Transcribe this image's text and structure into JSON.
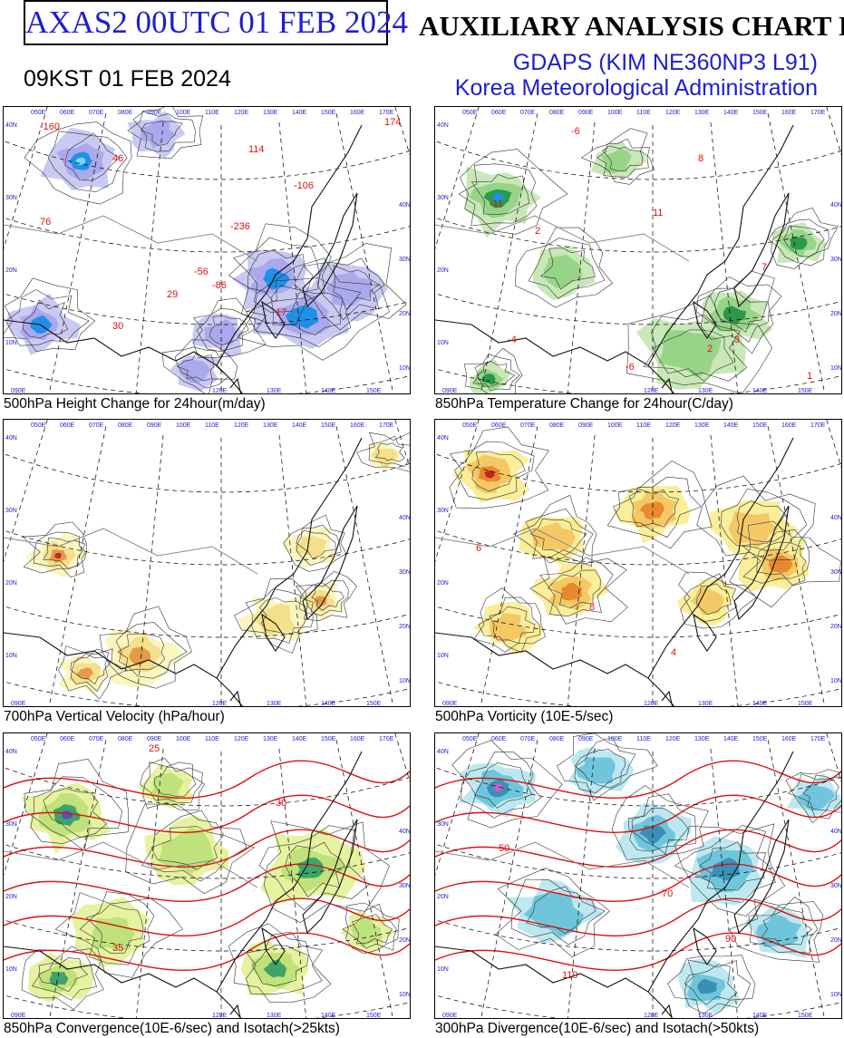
{
  "header": {
    "product_code": "AXAS2  00UTC 01 FEB 2024",
    "title": "AUXILIARY ANALYSIS CHART II",
    "model": "GDAPS (KIM NE360NP3 L91)",
    "agency": "Korea Meteorological Administration",
    "valid_time": "09KST 01 FEB 2024"
  },
  "grid_labels": {
    "top_lon": [
      "050E",
      "060E",
      "070E",
      "080E",
      "090E",
      "100E",
      "110E",
      "120E",
      "130E",
      "140E",
      "150E",
      "160E",
      "170E"
    ],
    "bottom_lon": [
      "090E",
      "120E",
      "130E",
      "140E",
      "150E"
    ],
    "left_lat": [
      "40N",
      "30N",
      "20N",
      "10N"
    ],
    "right_lat": [
      "40N",
      "30N",
      "20N",
      "10N"
    ]
  },
  "panels": [
    {
      "id": "height-change",
      "caption": "500hPa Height Change for 24hour(m/day)",
      "fill": "blue-purple",
      "labels": [
        "76",
        "46",
        "29",
        "-56",
        "114",
        "-106",
        "-236",
        "17",
        "30",
        "-160",
        "-86",
        "174"
      ]
    },
    {
      "id": "temperature-change",
      "caption": "850hPa Temperature Change for 24hour(C/day)",
      "fill": "green",
      "labels": [
        "-11",
        "-6",
        "8",
        "11",
        "2",
        "-4",
        "3",
        "-6",
        "7",
        "2",
        "1"
      ]
    },
    {
      "id": "vertical-velocity",
      "caption": "700hPa Vertical Velocity (hPa/hour)",
      "fill": "yellow-red",
      "labels": []
    },
    {
      "id": "vorticity",
      "caption": "500hPa Vorticity (10E-5/sec)",
      "fill": "yellow-orange",
      "labels": [
        "6",
        "8",
        "4"
      ]
    },
    {
      "id": "convergence",
      "caption": "850hPa Convergence(10E-6/sec) and Isotach(>25kts)",
      "fill": "green-yellow",
      "labels": [
        "25",
        "30",
        "35"
      ]
    },
    {
      "id": "divergence",
      "caption": "300hPa Divergence(10E-6/sec) and Isotach(>50kts)",
      "fill": "cyan-magenta",
      "labels": [
        "50",
        "70",
        "90",
        "110"
      ]
    }
  ],
  "colors": {
    "title_blue": "#1e1ecc",
    "contour_red": "#dd1111",
    "grid_label_blue": "#2222cc"
  }
}
